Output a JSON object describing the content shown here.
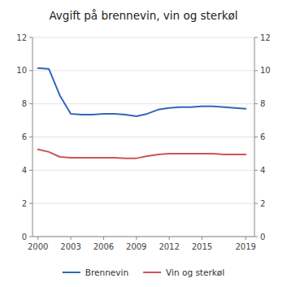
{
  "chart_data": {
    "type": "line",
    "title": "Avgift på brennevin, vin og sterkøl",
    "x": [
      2000,
      2001,
      2002,
      2003,
      2004,
      2005,
      2006,
      2007,
      2008,
      2009,
      2010,
      2011,
      2012,
      2013,
      2014,
      2015,
      2016,
      2017,
      2018,
      2019
    ],
    "series": [
      {
        "name": "Brennevin",
        "color": "#3366bb",
        "values": [
          10.15,
          10.1,
          8.5,
          7.4,
          7.35,
          7.35,
          7.4,
          7.4,
          7.35,
          7.25,
          7.4,
          7.65,
          7.75,
          7.8,
          7.8,
          7.85,
          7.85,
          7.8,
          7.75,
          7.7
        ]
      },
      {
        "name": "Vin og sterkøl",
        "color": "#cc5555",
        "values": [
          5.25,
          5.1,
          4.8,
          4.75,
          4.75,
          4.75,
          4.75,
          4.75,
          4.72,
          4.72,
          4.85,
          4.95,
          5.0,
          5.0,
          5.0,
          5.0,
          5.0,
          4.95,
          4.95,
          4.95
        ]
      }
    ],
    "xlim": [
      1999.5,
      2019.8
    ],
    "xticks": [
      2000,
      2003,
      2006,
      2009,
      2012,
      2015,
      2019
    ],
    "ylim": [
      0,
      12
    ],
    "yticks": [
      0,
      2,
      4,
      6,
      8,
      10,
      12
    ],
    "y2lim": [
      0,
      12
    ],
    "y2ticks": [
      0,
      2,
      4,
      6,
      8,
      10,
      12
    ],
    "grid": true,
    "legend": "bottom"
  }
}
